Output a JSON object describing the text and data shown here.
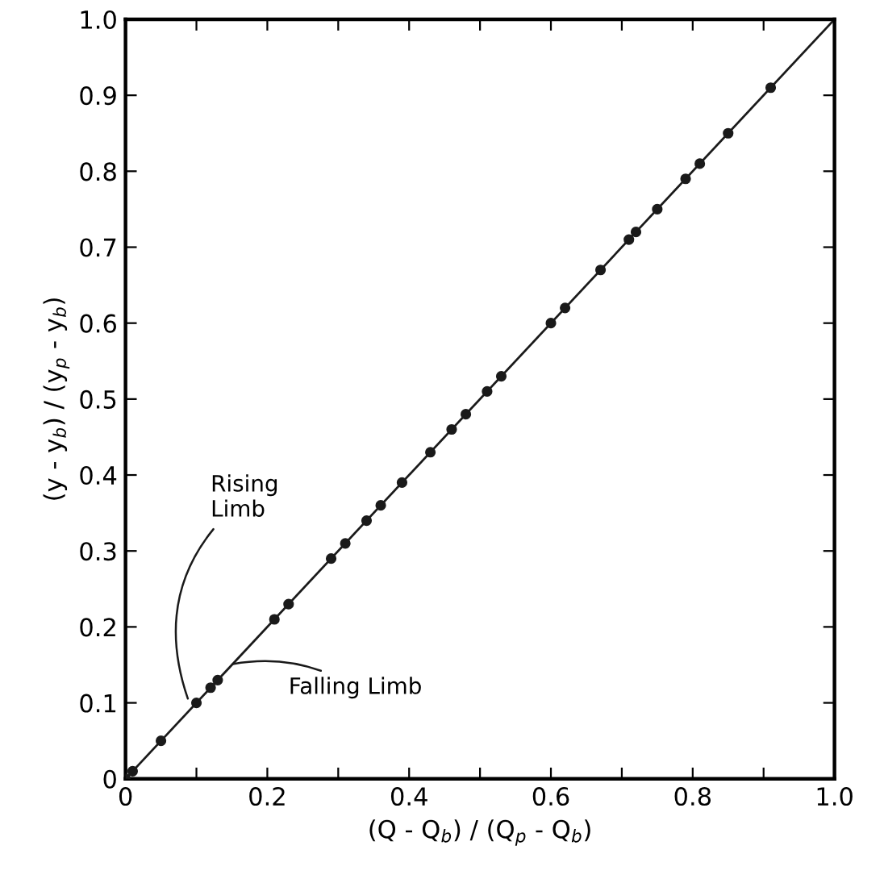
{
  "chart_data": {
    "type": "scatter",
    "xlabel": "(Q - Q$_{b}$) / (Q$_{p}$ - Q$_{b}$)",
    "ylabel": "(y - y$_{b}$) / (y$_{p}$ - y$_{b}$)",
    "xlim": [
      0,
      1.0
    ],
    "ylim": [
      0,
      1.0
    ],
    "xticks": [
      0,
      {
        "value": 0.1,
        "label": null
      },
      0.2,
      {
        "value": 0.3,
        "label": null
      },
      0.4,
      {
        "value": 0.5,
        "label": null
      },
      0.6,
      {
        "value": 0.7,
        "label": null
      },
      0.8,
      {
        "value": 0.9,
        "label": null
      },
      {
        "value": 1.0,
        "label": "1.0"
      }
    ],
    "yticks": [
      0,
      0.1,
      0.2,
      0.3,
      0.4,
      0.5,
      0.6,
      0.7,
      0.8,
      0.9,
      {
        "value": 1.0,
        "label": "1.0"
      }
    ],
    "grid": false,
    "series": [
      {
        "marker": "circle",
        "color": "#1a1a1a",
        "x": [
          0.0,
          0.01,
          0.05,
          0.1,
          0.12,
          0.13,
          0.21,
          0.23,
          0.29,
          0.31,
          0.34,
          0.36,
          0.39,
          0.43,
          0.46,
          0.48,
          0.51,
          0.53,
          0.6,
          0.62,
          0.67,
          0.71,
          0.72,
          0.75,
          0.79,
          0.81,
          0.85,
          0.91
        ],
        "values": [
          0.0,
          0.01,
          0.05,
          0.1,
          0.12,
          0.13,
          0.21,
          0.23,
          0.29,
          0.31,
          0.34,
          0.36,
          0.39,
          0.43,
          0.46,
          0.48,
          0.51,
          0.53,
          0.6,
          0.62,
          0.67,
          0.71,
          0.72,
          0.75,
          0.79,
          0.81,
          0.85,
          0.91
        ]
      },
      {
        "type": "line",
        "color": "#1a1a1a",
        "line_style": "solid",
        "marker": "none",
        "x": [
          0,
          1.0
        ],
        "values": [
          0,
          1.0
        ]
      }
    ],
    "annotations": [
      {
        "text": "Rising\nLimb",
        "x": 0.09,
        "y": 0.1
      },
      {
        "text": "Falling Limb",
        "x": 0.145,
        "y": 0.15
      }
    ]
  }
}
